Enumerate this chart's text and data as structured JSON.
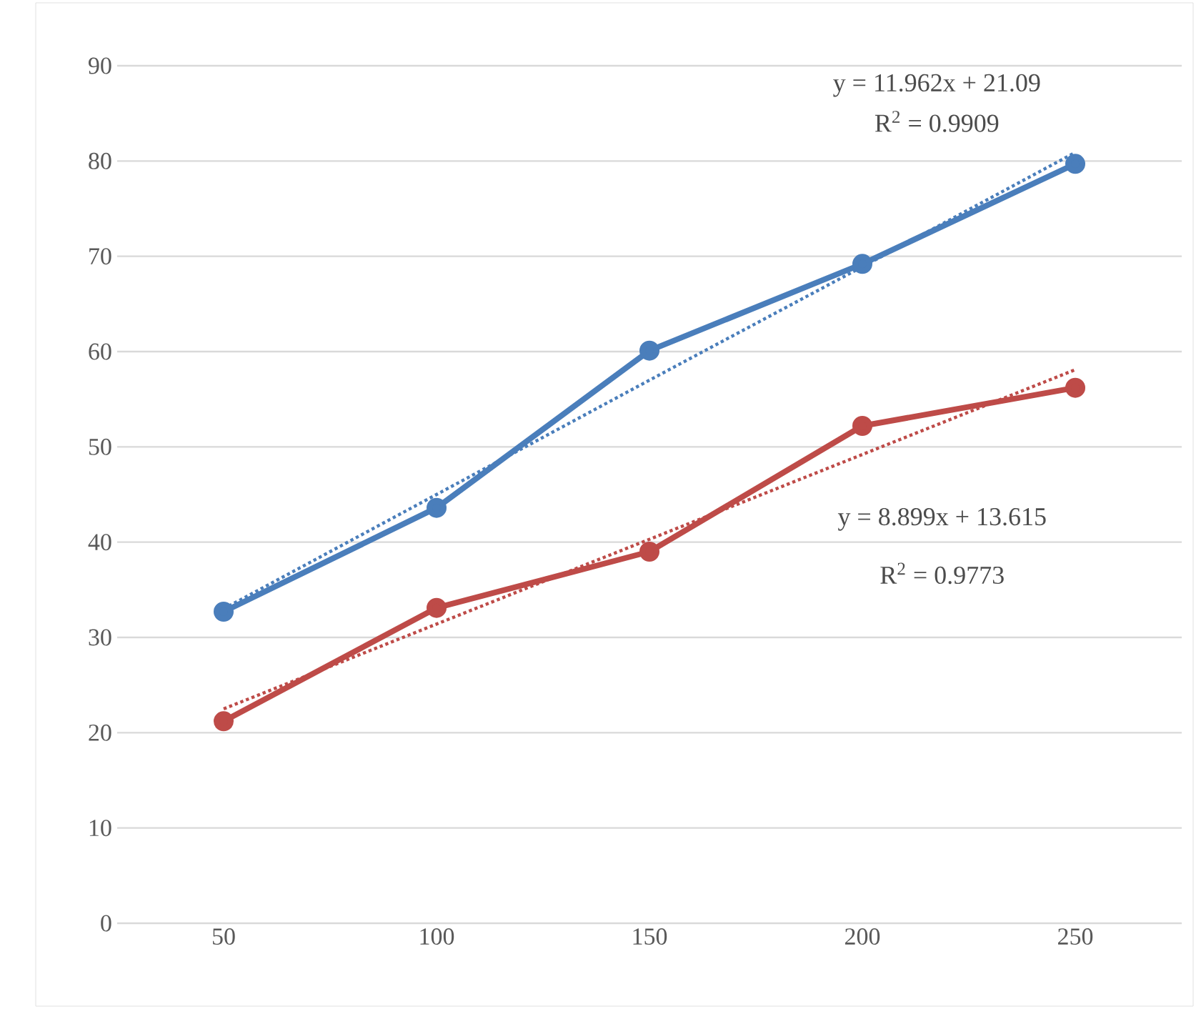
{
  "chart_data": {
    "type": "line",
    "x": [
      50,
      100,
      150,
      200,
      250
    ],
    "xlim": [
      25,
      275
    ],
    "xticks": [
      50,
      100,
      150,
      200,
      250
    ],
    "ylim": [
      0,
      90
    ],
    "yticks": [
      0,
      10,
      20,
      30,
      40,
      50,
      60,
      70,
      80,
      90
    ],
    "grid": "y",
    "marker": "circle",
    "line_style": "solid",
    "series": [
      {
        "color": "#4a7ebb",
        "values": [
          32.7,
          43.6,
          60.1,
          69.2,
          79.7
        ]
      },
      {
        "color": "#be4b48",
        "values": [
          21.2,
          33.1,
          39.0,
          52.2,
          56.2
        ]
      },
      {
        "type": "line",
        "color": "#4a7ebb",
        "values": [
          33.0,
          45.0,
          57.0,
          68.9,
          80.9
        ],
        "marker": "none",
        "line_style": "dotted"
      },
      {
        "type": "line",
        "color": "#be4b48",
        "values": [
          22.5,
          31.4,
          40.3,
          49.2,
          58.1
        ],
        "marker": "none",
        "line_style": "dotted"
      }
    ],
    "annotations": [
      "y = 11.962x + 21.09",
      "R$^{2}$ = 0.9909",
      "y = 8.899x + 13.615",
      "R$^{2}$ = 0.9773"
    ]
  }
}
